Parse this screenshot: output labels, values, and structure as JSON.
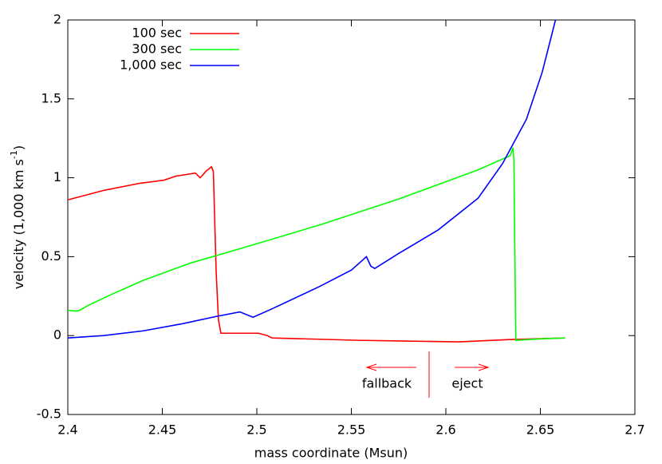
{
  "chart_data": {
    "type": "line",
    "xlabel": "mass coordinate (Msun)",
    "ylabel": "velocity (1,000 km s",
    "ylabel_sup": "-1",
    "ylabel_end": ")",
    "xlim": [
      2.4,
      2.7
    ],
    "xticks": [
      2.4,
      2.45,
      2.5,
      2.55,
      2.6,
      2.65,
      2.7
    ],
    "ylim": [
      -0.5,
      2
    ],
    "yticks": [
      -0.5,
      0,
      0.5,
      1,
      1.5,
      2
    ],
    "grid": false,
    "legend": "top-left",
    "annotations": [
      "fallback",
      "eject"
    ],
    "series": [
      {
        "name": "100 sec",
        "color": "#ff0000",
        "x": [
          2.4,
          2.419,
          2.438,
          2.451,
          2.457,
          2.4675,
          2.47,
          2.473,
          2.476,
          2.477,
          2.4785,
          2.4797,
          2.481,
          2.501,
          2.5055,
          2.508,
          2.554,
          2.607,
          2.634,
          2.663
        ],
        "values": [
          0.86,
          0.92,
          0.965,
          0.985,
          1.01,
          1.03,
          1.0,
          1.04,
          1.07,
          1.04,
          0.4,
          0.1,
          0.015,
          0.015,
          0.0,
          -0.015,
          -0.03,
          -0.04,
          -0.025,
          -0.015
        ]
      },
      {
        "name": "300 sec",
        "color": "#00ff00",
        "x": [
          2.4,
          2.404,
          2.4063,
          2.4105,
          2.423,
          2.44,
          2.465,
          2.491,
          2.533,
          2.575,
          2.617,
          2.634,
          2.6355,
          2.636,
          2.637,
          2.651,
          2.663
        ],
        "values": [
          0.16,
          0.155,
          0.16,
          0.19,
          0.26,
          0.35,
          0.46,
          0.55,
          0.7,
          0.865,
          1.05,
          1.14,
          1.19,
          1.11,
          -0.03,
          -0.02,
          -0.015
        ]
      },
      {
        "name": "1,000 sec",
        "color": "#0000ff",
        "x": [
          2.4,
          2.419,
          2.44,
          2.461,
          2.478,
          2.491,
          2.498,
          2.5076,
          2.533,
          2.55,
          2.558,
          2.5603,
          2.5624,
          2.575,
          2.596,
          2.617,
          2.63,
          2.6426,
          2.651,
          2.658
        ],
        "values": [
          -0.015,
          0.0,
          0.03,
          0.076,
          0.12,
          0.15,
          0.116,
          0.167,
          0.31,
          0.415,
          0.5,
          0.44,
          0.425,
          0.52,
          0.67,
          0.87,
          1.09,
          1.37,
          1.67,
          2.0
        ]
      }
    ]
  }
}
